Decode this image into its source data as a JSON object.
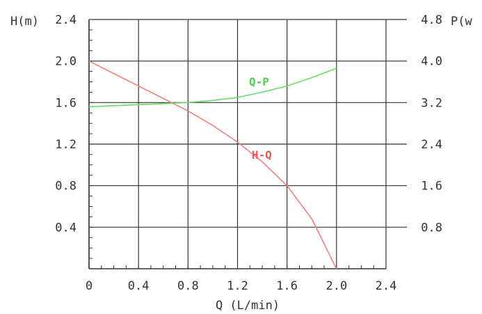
{
  "chart_data": {
    "type": "line",
    "xlabel": "Q (L/min)",
    "ylabel_left": "H(m)",
    "ylabel_right": "P(w",
    "xlim": [
      0,
      2.4
    ],
    "ylim_left": [
      0,
      2.4
    ],
    "ylim_right": [
      0,
      4.8
    ],
    "grid": true,
    "x_ticks": [
      "0",
      "0.4",
      "0.8",
      "1.2",
      "1.6",
      "2.0",
      "2.4"
    ],
    "y_left_ticks": [
      "0.4",
      "0.8",
      "1.2",
      "1.6",
      "2.0",
      "2.4"
    ],
    "y_right_ticks": [
      "0.8",
      "1.6",
      "2.4",
      "3.2",
      "4.0",
      "4.8"
    ],
    "series": [
      {
        "name": "H-Q",
        "axis": "left",
        "color": "#f08080",
        "x": [
          0,
          0.2,
          0.4,
          0.6,
          0.8,
          1.0,
          1.2,
          1.4,
          1.6,
          1.8,
          2.0
        ],
        "y": [
          2.0,
          1.88,
          1.76,
          1.64,
          1.52,
          1.38,
          1.22,
          1.03,
          0.8,
          0.48,
          0.0
        ]
      },
      {
        "name": "Q-P",
        "axis": "right",
        "color": "#66dd66",
        "x": [
          0,
          0.2,
          0.4,
          0.6,
          0.8,
          1.0,
          1.2,
          1.4,
          1.6,
          1.8,
          2.0
        ],
        "y": [
          3.12,
          3.14,
          3.16,
          3.18,
          3.2,
          3.24,
          3.3,
          3.4,
          3.52,
          3.68,
          3.86
        ]
      }
    ],
    "labels": {
      "hq": "H-Q",
      "qp": "Q-P"
    }
  }
}
